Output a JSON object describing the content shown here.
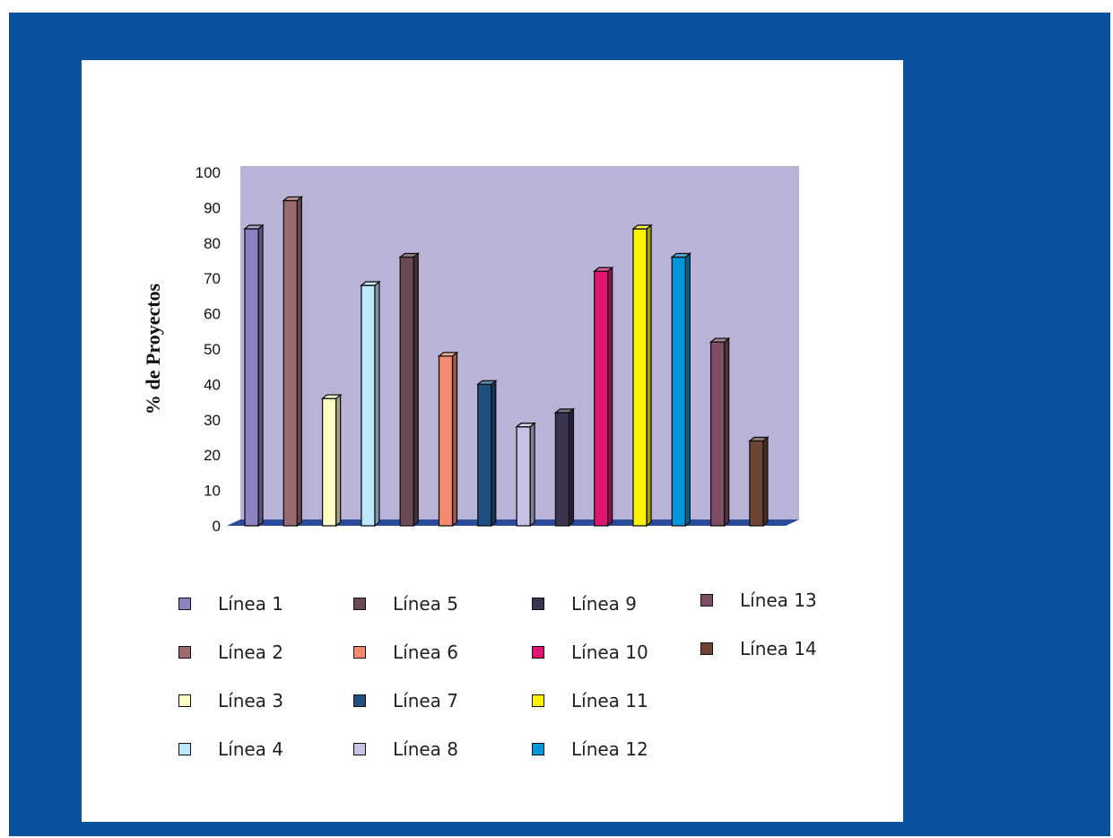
{
  "chart_data": {
    "type": "bar",
    "ylabel": "% de Proyectos",
    "xlabel": "",
    "ylim": [
      0,
      100
    ],
    "yticks": [
      "0",
      "10",
      "20",
      "30",
      "40",
      "50",
      "60",
      "70",
      "80",
      "90",
      "100"
    ],
    "categories": [
      "Línea 1",
      "Línea 2",
      "Línea 3",
      "Línea 4",
      "Línea 5",
      "Línea 6",
      "Línea 7",
      "Línea 8",
      "Línea 9",
      "Línea 10",
      "Línea 11",
      "Línea 12",
      "Línea 13",
      "Línea 14"
    ],
    "values": [
      84,
      92,
      36,
      68,
      76,
      48,
      40,
      28,
      32,
      72,
      84,
      76,
      52,
      24
    ],
    "colors": [
      "#8c83c0",
      "#9b6a6f",
      "#ffffc4",
      "#bde7fb",
      "#6c4a55",
      "#f58a6e",
      "#1f4f80",
      "#c8c2e6",
      "#3b3350",
      "#e0156f",
      "#fff200",
      "#0096db",
      "#7e4d63",
      "#6e4433"
    ],
    "plot_background": "#bab3d8",
    "floor_color": "#2a4a9a",
    "legend_placement": "bottom",
    "grid": false
  },
  "legend": {
    "items": [
      "Línea 1",
      "Línea 2",
      "Línea 3",
      "Línea 4",
      "Línea 5",
      "Línea 6",
      "Línea 7",
      "Línea 8",
      "Línea 9",
      "Línea 10",
      "Línea 11",
      "Línea 12",
      "Línea 13",
      "Línea 14"
    ]
  }
}
